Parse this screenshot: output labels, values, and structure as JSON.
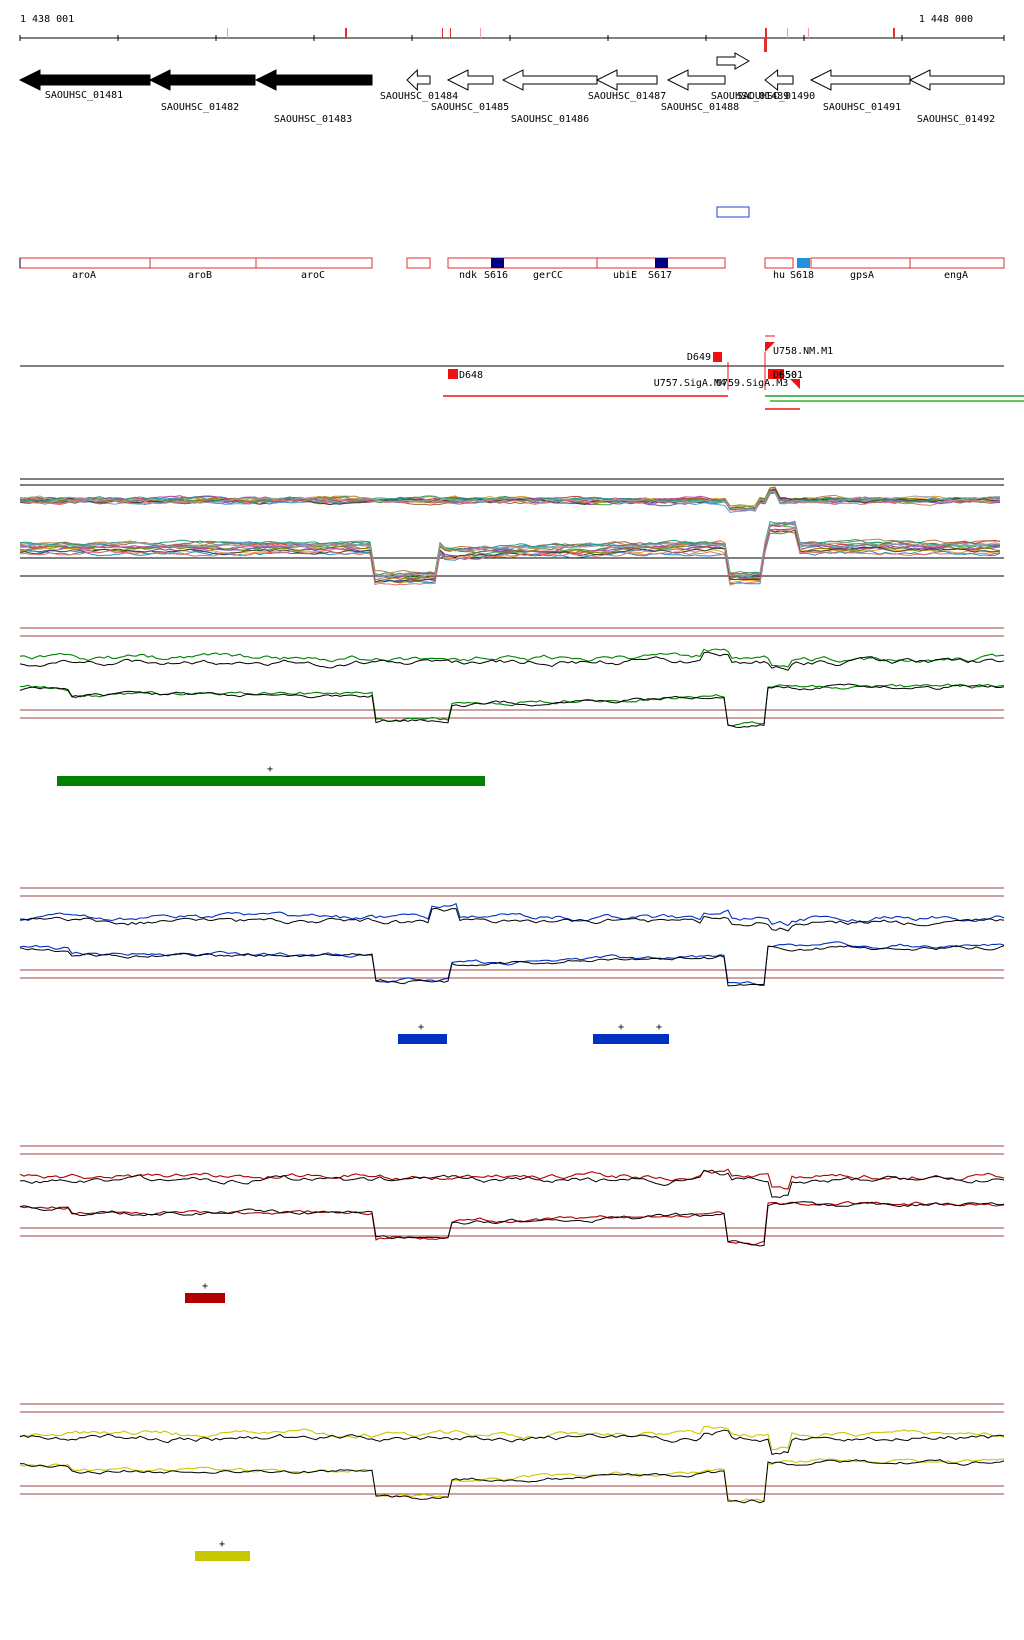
{
  "coordinates": {
    "start": "1 438 001",
    "end": "1 448 000"
  },
  "colors": {
    "gene_strong": "#000000",
    "region_outline": "#e03030",
    "feature_dark": "#000080",
    "feature_light": "#2090e0",
    "green": "#008000",
    "blue": "#0030c0",
    "red": "#b00000",
    "yellow": "#c8c800",
    "reference_line": "#a04040"
  },
  "genes": [
    {
      "id": "g1481",
      "name": "SAOUHSC_01481",
      "strand": "-",
      "filled": true
    },
    {
      "id": "g1482",
      "name": "SAOUHSC_01482",
      "strand": "-",
      "filled": true
    },
    {
      "id": "g1483",
      "name": "SAOUHSC_01483",
      "strand": "-",
      "filled": true
    },
    {
      "id": "g1484",
      "name": "SAOUHSC_01484",
      "strand": "-",
      "filled": false
    },
    {
      "id": "g1485",
      "name": "SAOUHSC_01485",
      "strand": "-",
      "filled": false
    },
    {
      "id": "g1486",
      "name": "SAOUHSC_01486",
      "strand": "-",
      "filled": false
    },
    {
      "id": "g1487",
      "name": "SAOUHSC_01487",
      "strand": "-",
      "filled": false
    },
    {
      "id": "g1488",
      "name": "SAOUHSC_01488",
      "strand": "-",
      "filled": false
    },
    {
      "id": "g1489",
      "name": "SAOUHSC_01489",
      "strand": "+",
      "filled": false
    },
    {
      "id": "g1490",
      "name": "SAOUHSC_01490",
      "strand": "-",
      "filled": false
    },
    {
      "id": "g1491",
      "name": "SAOUHSC_01491",
      "strand": "-",
      "filled": false
    },
    {
      "id": "g1492",
      "name": "SAOUHSC_01492",
      "strand": "-",
      "filled": false
    }
  ],
  "operons": [
    {
      "id": "aroA",
      "label": "aroA"
    },
    {
      "id": "aroB",
      "label": "aroB"
    },
    {
      "id": "aroC",
      "label": "aroC"
    },
    {
      "id": "ndk",
      "label": "ndk"
    },
    {
      "id": "gerCC",
      "label": "gerCC"
    },
    {
      "id": "ubiE",
      "label": "ubiE"
    },
    {
      "id": "hu",
      "label": "hu"
    },
    {
      "id": "gpsA",
      "label": "gpsA"
    },
    {
      "id": "engA",
      "label": "engA"
    }
  ],
  "segments": [
    {
      "id": "S616",
      "label": "S616",
      "shade": "dark"
    },
    {
      "id": "S617",
      "label": "S617",
      "shade": "dark"
    },
    {
      "id": "S618",
      "label": "S618",
      "shade": "light"
    }
  ],
  "transcript_features": [
    {
      "id": "D648",
      "label": "D648"
    },
    {
      "id": "D649",
      "label": "D649"
    },
    {
      "id": "U757",
      "label": "U757.SigA.M4"
    },
    {
      "id": "U759",
      "label": "U759.SigA.M3"
    },
    {
      "id": "U758",
      "label": "U758.NM.M1"
    },
    {
      "id": "D650",
      "label": "D650"
    },
    {
      "id": "S501",
      "label": "S501"
    }
  ],
  "conditions": [
    {
      "id": "green",
      "color": "green",
      "markers": [
        {
          "label": "+"
        }
      ]
    },
    {
      "id": "blue",
      "color": "blue",
      "markers": [
        {
          "label": "+"
        },
        {
          "label": "+"
        },
        {
          "label": "+"
        }
      ]
    },
    {
      "id": "red",
      "color": "red",
      "markers": [
        {
          "label": "+"
        }
      ]
    },
    {
      "id": "yellow",
      "color": "yellow",
      "markers": [
        {
          "label": "+"
        }
      ]
    }
  ]
}
